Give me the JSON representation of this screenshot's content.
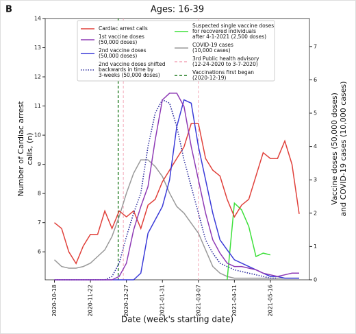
{
  "panel_label": "B",
  "chart_data": {
    "type": "line",
    "title": "Ages: 16-39",
    "xlabel": "Date (week's starting date)",
    "ylabel": "Number of Cardiac arrest\ncalls, (n)",
    "y2label": "Vaccine doses (50,000 doses)\nand COVID-19 cases (10,000 cases)",
    "x": [
      "2020-10-18",
      "2020-10-25",
      "2020-11-01",
      "2020-11-08",
      "2020-11-15",
      "2020-11-22",
      "2020-11-29",
      "2020-12-06",
      "2020-12-13",
      "2020-12-20",
      "2020-12-27",
      "2021-01-03",
      "2021-01-10",
      "2021-01-17",
      "2021-01-24",
      "2021-01-31",
      "2021-02-07",
      "2021-02-14",
      "2021-02-21",
      "2021-02-28",
      "2021-03-07",
      "2021-03-14",
      "2021-03-21",
      "2021-03-28",
      "2021-04-04",
      "2021-04-11",
      "2021-04-18",
      "2021-04-25",
      "2021-05-02",
      "2021-05-09",
      "2021-05-16",
      "2021-05-23",
      "2021-05-30",
      "2021-06-06",
      "2021-06-13"
    ],
    "xlim": [
      "2020-10-09",
      "2021-06-23"
    ],
    "xticks": [
      "2020-10-18",
      "2020-11-22",
      "2020-12-27",
      "2021-01-31",
      "2021-03-07",
      "2021-04-11",
      "2021-05-16"
    ],
    "ylim": [
      5.04,
      14
    ],
    "yticks": [
      6,
      7,
      8,
      9,
      10,
      11,
      12,
      13,
      14
    ],
    "y2lim": [
      0,
      7.84
    ],
    "y2ticks": [
      0,
      1,
      2,
      3,
      4,
      5,
      6,
      7
    ],
    "legend": "upper center",
    "series": [
      {
        "name": "Cardiac arrest calls",
        "color": "#e0403a",
        "axis": "y",
        "linestyle": "solid",
        "values": [
          7.0,
          6.8,
          6.0,
          5.6,
          6.2,
          6.6,
          6.6,
          7.4,
          6.8,
          7.4,
          7.2,
          7.4,
          6.8,
          7.6,
          7.8,
          8.4,
          8.8,
          9.2,
          9.6,
          10.4,
          10.4,
          9.2,
          8.8,
          8.6,
          7.8,
          7.2,
          7.6,
          7.8,
          8.6,
          9.4,
          9.2,
          9.2,
          9.8,
          9.0,
          7.3
        ]
      },
      {
        "name": "1st vaccine doses\n(50,000 doses)",
        "color": "#8e3ab5",
        "axis": "y2",
        "linestyle": "solid",
        "values": [
          0,
          0,
          0,
          0,
          0,
          0,
          0,
          0,
          0,
          0.1,
          0.5,
          1.5,
          2.2,
          2.8,
          4.2,
          5.4,
          5.6,
          5.6,
          5.2,
          4.0,
          3.0,
          2.0,
          1.2,
          0.8,
          0.5,
          0.4,
          0.4,
          0.35,
          0.3,
          0.2,
          0.15,
          0.1,
          0.15,
          0.2,
          0.2
        ]
      },
      {
        "name": "2nd vaccine doses\n(50,000 doses)",
        "color": "#3a3ad8",
        "axis": "y2",
        "linestyle": "solid",
        "values": [
          0,
          0,
          0,
          0,
          0,
          0,
          0,
          0,
          0,
          0,
          0,
          0,
          0.2,
          1.4,
          1.8,
          2.2,
          3.0,
          4.6,
          5.4,
          5.3,
          4.0,
          3.0,
          2.0,
          1.2,
          0.9,
          0.6,
          0.5,
          0.4,
          0.3,
          0.2,
          0.1,
          0.1,
          0.05,
          0.05,
          0.05
        ]
      },
      {
        "name": "2nd vaccine doses shifted\nbackwards in time by\n3-weeks (50,000 doses)",
        "color": "#2a2a9e",
        "axis": "y2",
        "linestyle": "dotted",
        "values": [
          0,
          0,
          0,
          0,
          0,
          0,
          0,
          0,
          0.1,
          0.5,
          1.3,
          2.0,
          2.6,
          4.0,
          5.0,
          5.4,
          5.3,
          4.6,
          3.6,
          2.8,
          2.0,
          1.2,
          0.8,
          0.5,
          0.4,
          0.3,
          0.25,
          0.2,
          0.15,
          0.1,
          0.05,
          0.05,
          null,
          null,
          null
        ]
      },
      {
        "name": "Suspected single vaccine doses\nfor recovered individuals\nafter 4-1-2021 (2,500 doses)",
        "color": "#3de03a",
        "axis": "y2",
        "linestyle": "solid",
        "values": [
          null,
          null,
          null,
          null,
          null,
          null,
          null,
          null,
          null,
          null,
          null,
          null,
          null,
          null,
          null,
          null,
          null,
          null,
          null,
          null,
          null,
          null,
          null,
          null,
          0.0,
          2.3,
          2.1,
          1.6,
          0.7,
          0.8,
          0.75,
          null,
          null,
          null,
          null
        ]
      },
      {
        "name": "COVID-19 cases\n(10,000 cases)",
        "color": "#999999",
        "axis": "y2",
        "linestyle": "solid",
        "values": [
          0.6,
          0.4,
          0.35,
          0.35,
          0.4,
          0.5,
          0.7,
          0.9,
          1.3,
          1.9,
          2.6,
          3.2,
          3.6,
          3.6,
          3.4,
          3.1,
          2.6,
          2.2,
          2.0,
          1.7,
          1.4,
          0.9,
          0.4,
          0.2,
          0.1,
          0.05,
          0.05,
          0.05,
          0.05,
          0.05,
          0.05,
          0.05,
          0.05,
          0.05,
          0.05
        ]
      }
    ],
    "vlines": [
      {
        "name": "3rd Public health advisory\n(12-24-2020 to 3-7-2020)",
        "color": "#f4a6b8",
        "x": [
          "2020-12-24",
          "2021-03-07"
        ]
      },
      {
        "name": "Vaccinations first began\n(2020-12-19)",
        "color": "#1f7a1f",
        "x": [
          "2020-12-19"
        ]
      }
    ]
  }
}
